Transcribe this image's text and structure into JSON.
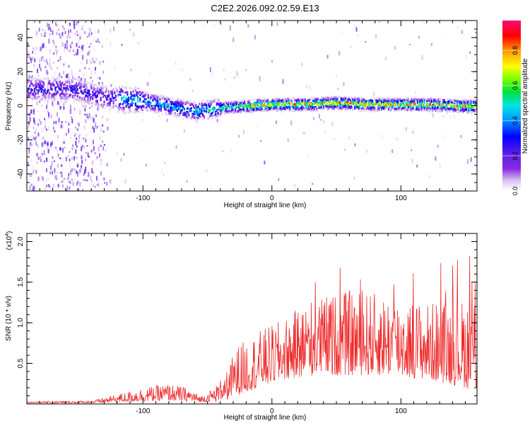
{
  "title": "C2E2.2026.092.02.59.E13",
  "chart_data": [
    {
      "type": "heatmap",
      "name": "spectrogram",
      "xlabel": "Height of straight line (km)",
      "ylabel": "Frequency (Hz)",
      "xlim": [
        -190,
        159
      ],
      "ylim": [
        -50,
        50
      ],
      "xticks": [
        -100,
        0,
        100
      ],
      "xtick_labels": [
        "-100",
        "0",
        "100"
      ],
      "yticks": [
        -40,
        -20,
        0,
        20,
        40
      ],
      "ytick_labels": [
        "-40",
        "-20",
        "0",
        "20",
        "40"
      ],
      "colorbar": {
        "label": "Normalized spectral amplitude",
        "range": [
          0,
          0.97
        ],
        "ticks": [
          0,
          0.2,
          0.4,
          0.6,
          0.8
        ],
        "tick_labels": [
          "0.0",
          "0.2",
          "0.4",
          "0.6",
          "0.8"
        ],
        "colormap": "rainbow (lavender-purple-blue-cyan-green-yellow-red-magenta)"
      },
      "ridge_center": [
        {
          "x": -155,
          "y": 10
        },
        {
          "x": -130,
          "y": 5
        },
        {
          "x": -100,
          "y": 3
        },
        {
          "x": -80,
          "y": 0
        },
        {
          "x": -60,
          "y": -3
        },
        {
          "x": -50,
          "y": -2
        },
        {
          "x": -40,
          "y": -1
        },
        {
          "x": -20,
          "y": 0
        },
        {
          "x": 0,
          "y": 1
        },
        {
          "x": 25,
          "y": 1
        },
        {
          "x": 50,
          "y": 2
        },
        {
          "x": 75,
          "y": 1
        },
        {
          "x": 100,
          "y": 1
        },
        {
          "x": 125,
          "y": 1
        },
        {
          "x": 150,
          "y": 0
        }
      ]
    },
    {
      "type": "line",
      "name": "snr",
      "xlabel": "Height of straight line (km)",
      "ylabel": "SNR (10 * v/v)",
      "scale_label": "(x10",
      "scale_exponent": "4",
      "xlim": [
        -190,
        159
      ],
      "ylim": [
        0,
        2.1
      ],
      "xticks": [
        -100,
        0,
        100
      ],
      "xtick_labels": [
        "-100",
        "0",
        "100"
      ],
      "yticks": [
        0.5,
        1.0,
        1.5,
        2.0
      ],
      "ytick_labels": [
        "0.5",
        "1.0",
        "1.5",
        "2.0"
      ],
      "color": "#ee2a2a",
      "envelope": [
        {
          "x": -190,
          "lo": 0.01,
          "hi": 0.03
        },
        {
          "x": -140,
          "lo": 0.01,
          "hi": 0.04
        },
        {
          "x": -120,
          "lo": 0.02,
          "hi": 0.12
        },
        {
          "x": -100,
          "lo": 0.03,
          "hi": 0.2
        },
        {
          "x": -80,
          "lo": 0.04,
          "hi": 0.25
        },
        {
          "x": -65,
          "lo": 0.03,
          "hi": 0.2
        },
        {
          "x": -55,
          "lo": 0.02,
          "hi": 0.1
        },
        {
          "x": -45,
          "lo": 0.03,
          "hi": 0.2
        },
        {
          "x": -35,
          "lo": 0.05,
          "hi": 0.4
        },
        {
          "x": -28,
          "lo": 0.1,
          "hi": 0.7
        },
        {
          "x": -10,
          "lo": 0.2,
          "hi": 0.9
        },
        {
          "x": 10,
          "lo": 0.3,
          "hi": 1.05
        },
        {
          "x": 30,
          "lo": 0.35,
          "hi": 1.3
        },
        {
          "x": 60,
          "lo": 0.35,
          "hi": 1.4
        },
        {
          "x": 90,
          "lo": 0.35,
          "hi": 1.35
        },
        {
          "x": 120,
          "lo": 0.3,
          "hi": 1.25
        },
        {
          "x": 150,
          "lo": 0.2,
          "hi": 1.3
        },
        {
          "x": 159,
          "lo": 0.15,
          "hi": 1.45
        }
      ]
    }
  ]
}
